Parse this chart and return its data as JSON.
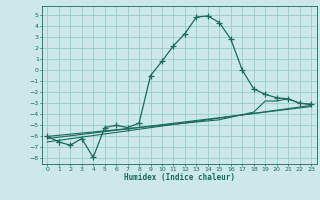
{
  "bg_color": "#cce8e8",
  "grid_color": "#99cccc",
  "line_color": "#1a6b5a",
  "xlabel": "Humidex (Indice chaleur)",
  "ylim": [
    -8.5,
    5.8
  ],
  "xlim": [
    -0.5,
    23.5
  ],
  "yticks": [
    5,
    4,
    3,
    2,
    1,
    0,
    -1,
    -2,
    -3,
    -4,
    -5,
    -6,
    -7,
    -8
  ],
  "xticks": [
    0,
    1,
    2,
    3,
    4,
    5,
    6,
    7,
    8,
    9,
    10,
    11,
    12,
    13,
    14,
    15,
    16,
    17,
    18,
    19,
    20,
    21,
    22,
    23
  ],
  "curve1_x": [
    0,
    1,
    2,
    3,
    4,
    5,
    6,
    7,
    8,
    9,
    10,
    11,
    12,
    13,
    14,
    15,
    16,
    17,
    18,
    19,
    20,
    21,
    22,
    23
  ],
  "curve1_y": [
    -6.0,
    -6.5,
    -6.8,
    -6.2,
    -7.9,
    -5.2,
    -5.0,
    -5.2,
    -4.8,
    -0.5,
    0.8,
    2.2,
    3.3,
    4.8,
    4.9,
    4.3,
    2.8,
    0.0,
    -1.7,
    -2.2,
    -2.5,
    -2.6,
    -3.0,
    -3.1
  ],
  "curve2_x": [
    0,
    5,
    10,
    15,
    18,
    19,
    20,
    21,
    22,
    23
  ],
  "curve2_y": [
    -6.0,
    -5.5,
    -5.0,
    -4.5,
    -3.8,
    -2.8,
    -2.8,
    -2.6,
    -3.0,
    -3.1
  ],
  "curve3_x": [
    0,
    23
  ],
  "curve3_y": [
    -6.2,
    -3.3
  ],
  "curve4_x": [
    0,
    23
  ],
  "curve4_y": [
    -6.5,
    -3.2
  ]
}
